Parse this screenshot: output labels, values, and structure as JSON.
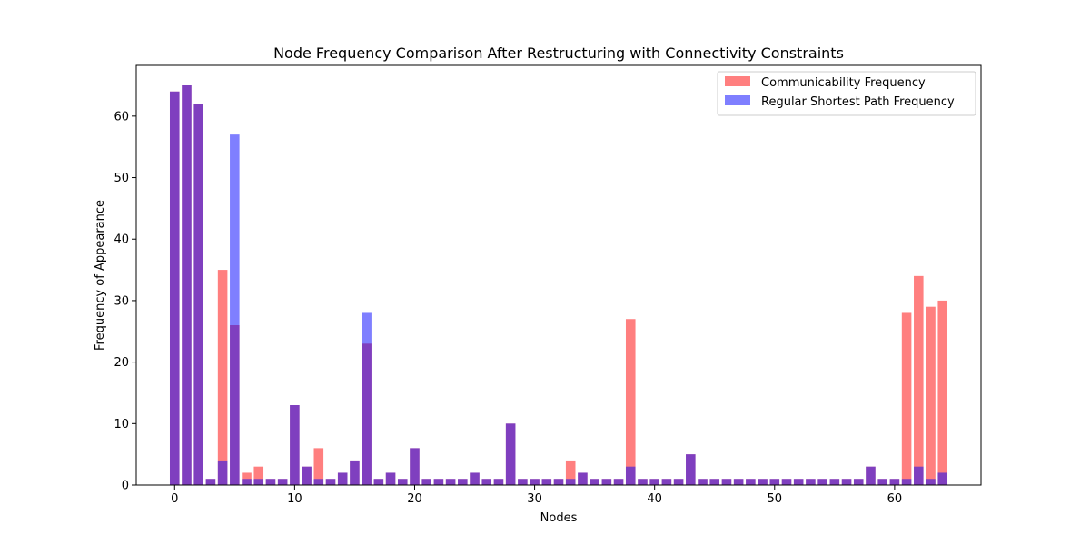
{
  "chart_data": {
    "type": "bar",
    "title": "Node Frequency Comparison After Restructuring with Connectivity Constraints",
    "xlabel": "Nodes",
    "ylabel": "Frequency of Appearance",
    "xlim": [
      -3.2,
      67.2
    ],
    "ylim": [
      0,
      68.25
    ],
    "xticks": [
      0,
      10,
      20,
      30,
      40,
      50,
      60
    ],
    "yticks": [
      0,
      10,
      20,
      30,
      40,
      50,
      60
    ],
    "legend_position": "top-right",
    "grid": false,
    "x": [
      0,
      1,
      2,
      3,
      4,
      5,
      6,
      7,
      8,
      9,
      10,
      11,
      12,
      13,
      14,
      15,
      16,
      17,
      18,
      19,
      20,
      21,
      22,
      23,
      24,
      25,
      26,
      27,
      28,
      29,
      30,
      31,
      32,
      33,
      34,
      35,
      36,
      37,
      38,
      39,
      40,
      41,
      42,
      43,
      44,
      45,
      46,
      47,
      48,
      49,
      50,
      51,
      52,
      53,
      54,
      55,
      56,
      57,
      58,
      59,
      60,
      61,
      62,
      63,
      64
    ],
    "series": [
      {
        "name": "Communicability Frequency",
        "color": "#ff0000",
        "opacity": 0.5,
        "values": [
          64,
          65,
          62,
          1,
          35,
          26,
          2,
          3,
          1,
          1,
          13,
          3,
          6,
          1,
          2,
          4,
          23,
          1,
          2,
          1,
          6,
          1,
          1,
          1,
          1,
          2,
          1,
          1,
          10,
          1,
          1,
          1,
          1,
          4,
          2,
          1,
          1,
          1,
          27,
          1,
          1,
          1,
          1,
          5,
          1,
          1,
          1,
          1,
          1,
          1,
          1,
          1,
          1,
          1,
          1,
          1,
          1,
          1,
          3,
          1,
          1,
          28,
          34,
          29,
          30
        ]
      },
      {
        "name": "Regular Shortest Path Frequency",
        "color": "#0000ff",
        "opacity": 0.5,
        "values": [
          64,
          65,
          62,
          1,
          4,
          57,
          1,
          1,
          1,
          1,
          13,
          3,
          1,
          1,
          2,
          4,
          28,
          1,
          2,
          1,
          6,
          1,
          1,
          1,
          1,
          2,
          1,
          1,
          10,
          1,
          1,
          1,
          1,
          1,
          2,
          1,
          1,
          1,
          3,
          1,
          1,
          1,
          1,
          5,
          1,
          1,
          1,
          1,
          1,
          1,
          1,
          1,
          1,
          1,
          1,
          1,
          1,
          1,
          3,
          1,
          1,
          1,
          3,
          1,
          2
        ]
      }
    ]
  }
}
